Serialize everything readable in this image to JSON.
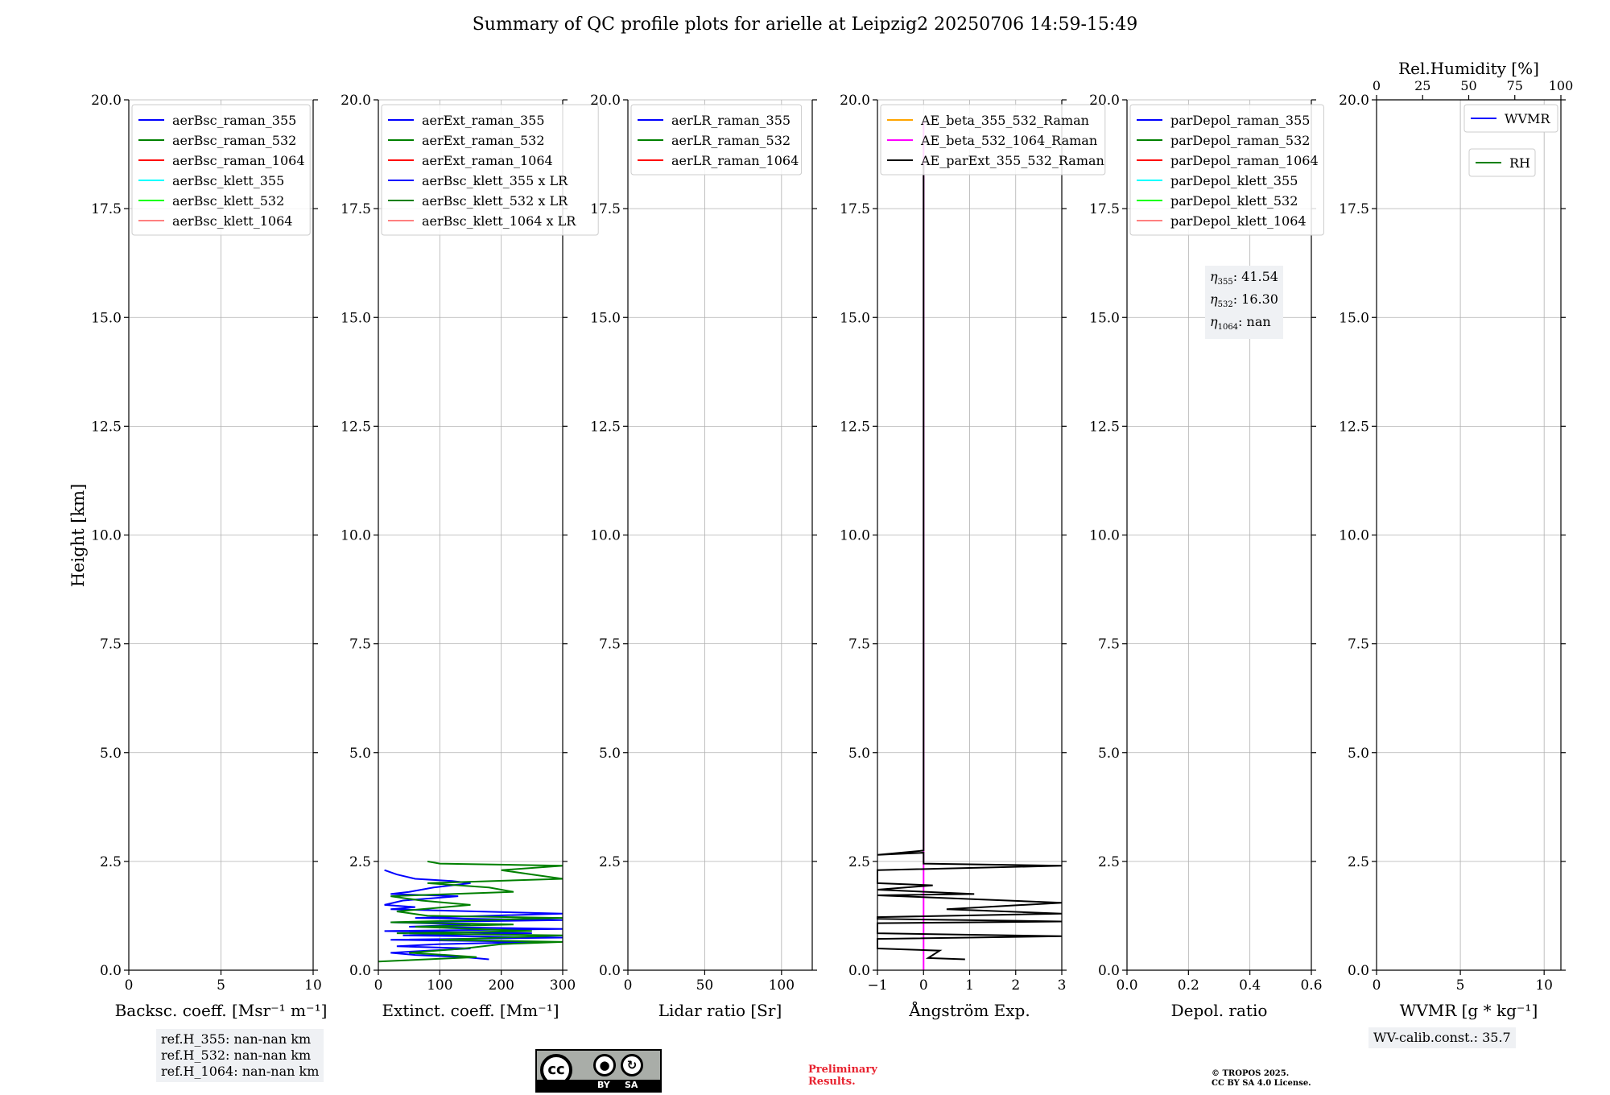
{
  "title": "Summary of QC profile plots for arielle at Leipzig2 20250706 14:59-15:49",
  "colors": {
    "blue": "#0000ff",
    "green": "#008000",
    "red": "#ff0000",
    "cyan": "#00ffff",
    "lime": "#00ff00",
    "pink": "#ff8080",
    "orange": "#ffa500",
    "magenta": "#ff00ff",
    "black": "#000000",
    "grid": "#b0b0b0",
    "info_bg": "#eff1f4",
    "preliminary": "#e8212e"
  },
  "chart_data": [
    {
      "type": "line",
      "ylabel": "Height [km]",
      "xlabel": "Backsc. coeff. [Msr⁻¹ m⁻¹]",
      "xlim": [
        0,
        10
      ],
      "ylim": [
        0,
        20
      ],
      "xticks": [
        0,
        5,
        10
      ],
      "xtick_labels": [
        "0",
        "5",
        "10"
      ],
      "yticks": [
        0,
        2.5,
        5,
        7.5,
        10,
        12.5,
        15,
        17.5,
        20
      ],
      "ytick_labels": [
        "0.0",
        "2.5",
        "5.0",
        "7.5",
        "10.0",
        "12.5",
        "15.0",
        "17.5",
        "20.0"
      ],
      "grid": true,
      "legend_position": "top-left",
      "series": [
        {
          "name": "aerBsc_raman_355",
          "color": "#0000ff",
          "points": []
        },
        {
          "name": "aerBsc_raman_532",
          "color": "#008000",
          "points": []
        },
        {
          "name": "aerBsc_raman_1064",
          "color": "#ff0000",
          "points": []
        },
        {
          "name": "aerBsc_klett_355",
          "color": "#00ffff",
          "points": []
        },
        {
          "name": "aerBsc_klett_532",
          "color": "#00ff00",
          "points": []
        },
        {
          "name": "aerBsc_klett_1064",
          "color": "#ff8080",
          "points": []
        }
      ]
    },
    {
      "type": "line",
      "xlabel": "Extinct. coeff. [Mm⁻¹]",
      "xlim": [
        0,
        300
      ],
      "ylim": [
        0,
        20
      ],
      "xticks": [
        0,
        100,
        200,
        300
      ],
      "xtick_labels": [
        "0",
        "100",
        "200",
        "300"
      ],
      "yticks": [
        0,
        2.5,
        5,
        7.5,
        10,
        12.5,
        15,
        17.5,
        20
      ],
      "ytick_labels": [
        "0.0",
        "2.5",
        "5.0",
        "7.5",
        "10.0",
        "12.5",
        "15.0",
        "17.5",
        "20.0"
      ],
      "grid": true,
      "legend_position": "top-left",
      "series": [
        {
          "name": "aerExt_raman_355",
          "color": "#0000ff",
          "points": []
        },
        {
          "name": "aerExt_raman_532",
          "color": "#008000",
          "points": []
        },
        {
          "name": "aerExt_raman_1064",
          "color": "#ff0000",
          "points": []
        },
        {
          "name": "aerBsc_klett_355 x LR",
          "color": "#0000ff",
          "points": [
            [
              180,
              0.25
            ],
            [
              140,
              0.3
            ],
            [
              60,
              0.35
            ],
            [
              20,
              0.4
            ],
            [
              80,
              0.45
            ],
            [
              150,
              0.5
            ],
            [
              30,
              0.55
            ],
            [
              100,
              0.6
            ],
            [
              260,
              0.65
            ],
            [
              20,
              0.7
            ],
            [
              300,
              0.75
            ],
            [
              40,
              0.8
            ],
            [
              250,
              0.85
            ],
            [
              10,
              0.9
            ],
            [
              300,
              0.95
            ],
            [
              50,
              1.0
            ],
            [
              150,
              1.05
            ],
            [
              20,
              1.1
            ],
            [
              300,
              1.15
            ],
            [
              60,
              1.2
            ],
            [
              300,
              1.3
            ],
            [
              20,
              1.4
            ],
            [
              60,
              1.45
            ],
            [
              10,
              1.5
            ],
            [
              40,
              1.6
            ],
            [
              130,
              1.7
            ],
            [
              20,
              1.75
            ],
            [
              50,
              1.8
            ],
            [
              90,
              1.9
            ],
            [
              150,
              2.0
            ],
            [
              120,
              2.05
            ],
            [
              60,
              2.1
            ],
            [
              30,
              2.2
            ],
            [
              10,
              2.3
            ]
          ]
        },
        {
          "name": "aerBsc_klett_532 x LR",
          "color": "#008000",
          "points": [
            [
              0,
              0.2
            ],
            [
              160,
              0.3
            ],
            [
              110,
              0.35
            ],
            [
              50,
              0.4
            ],
            [
              140,
              0.5
            ],
            [
              200,
              0.6
            ],
            [
              300,
              0.65
            ],
            [
              100,
              0.7
            ],
            [
              300,
              0.8
            ],
            [
              30,
              0.85
            ],
            [
              250,
              0.9
            ],
            [
              60,
              1.0
            ],
            [
              220,
              1.05
            ],
            [
              20,
              1.1
            ],
            [
              300,
              1.2
            ],
            [
              80,
              1.25
            ],
            [
              30,
              1.35
            ],
            [
              150,
              1.5
            ],
            [
              70,
              1.6
            ],
            [
              20,
              1.7
            ],
            [
              220,
              1.8
            ],
            [
              180,
              1.9
            ],
            [
              80,
              2.0
            ],
            [
              300,
              2.1
            ],
            [
              250,
              2.2
            ],
            [
              200,
              2.3
            ],
            [
              300,
              2.4
            ],
            [
              100,
              2.45
            ],
            [
              80,
              2.5
            ]
          ]
        },
        {
          "name": "aerBsc_klett_1064 x LR",
          "color": "#ff8080",
          "points": []
        }
      ]
    },
    {
      "type": "line",
      "xlabel": "Lidar ratio [Sr]",
      "xlim": [
        0,
        120
      ],
      "ylim": [
        0,
        20
      ],
      "xticks": [
        0,
        50,
        100
      ],
      "xtick_labels": [
        "0",
        "50",
        "100"
      ],
      "yticks": [
        0,
        2.5,
        5,
        7.5,
        10,
        12.5,
        15,
        17.5,
        20
      ],
      "ytick_labels": [
        "0.0",
        "2.5",
        "5.0",
        "7.5",
        "10.0",
        "12.5",
        "15.0",
        "17.5",
        "20.0"
      ],
      "grid": true,
      "legend_position": "top-left",
      "series": [
        {
          "name": "aerLR_raman_355",
          "color": "#0000ff",
          "points": []
        },
        {
          "name": "aerLR_raman_532",
          "color": "#008000",
          "points": []
        },
        {
          "name": "aerLR_raman_1064",
          "color": "#ff0000",
          "points": []
        }
      ]
    },
    {
      "type": "line",
      "xlabel": "Ångström Exp.",
      "xlim": [
        -1,
        3
      ],
      "ylim": [
        0,
        20
      ],
      "xticks": [
        -1,
        0,
        1,
        2,
        3
      ],
      "xtick_labels": [
        "−1",
        "0",
        "1",
        "2",
        "3"
      ],
      "yticks": [
        0,
        2.5,
        5,
        7.5,
        10,
        12.5,
        15,
        17.5,
        20
      ],
      "ytick_labels": [
        "0.0",
        "2.5",
        "5.0",
        "7.5",
        "10.0",
        "12.5",
        "15.0",
        "17.5",
        "20.0"
      ],
      "grid": true,
      "legend_position": "top-left",
      "series": [
        {
          "name": "AE_beta_355_532_Raman",
          "color": "#ffa500",
          "points": []
        },
        {
          "name": "AE_beta_532_1064_Raman",
          "color": "#ff00ff",
          "points": [
            [
              0,
              0.0
            ],
            [
              0,
              19.5
            ]
          ]
        },
        {
          "name": "AE_parExt_355_532_Raman",
          "color": "#000000",
          "points": [
            [
              0.9,
              0.25
            ],
            [
              0.1,
              0.28
            ],
            [
              0.35,
              0.45
            ],
            [
              -1,
              0.5
            ],
            [
              -1,
              0.72
            ],
            [
              3,
              0.78
            ],
            [
              -1,
              0.85
            ],
            [
              -1,
              1.08
            ],
            [
              3,
              1.12
            ],
            [
              -1,
              1.18
            ],
            [
              -1,
              1.22
            ],
            [
              3,
              1.3
            ],
            [
              0.5,
              1.4
            ],
            [
              3,
              1.55
            ],
            [
              -1,
              1.72
            ],
            [
              1.1,
              1.75
            ],
            [
              -1,
              1.85
            ],
            [
              0.2,
              1.95
            ],
            [
              -1,
              2.0
            ],
            [
              -1,
              2.3
            ],
            [
              3,
              2.4
            ],
            [
              0,
              2.45
            ],
            [
              0,
              2.7
            ],
            [
              -1,
              2.65
            ],
            [
              0,
              2.75
            ],
            [
              0,
              18.5
            ]
          ]
        }
      ]
    },
    {
      "type": "line",
      "xlabel": "Depol. ratio",
      "xlim": [
        0,
        0.6
      ],
      "ylim": [
        0,
        20
      ],
      "xticks": [
        0,
        0.2,
        0.4,
        0.6
      ],
      "xtick_labels": [
        "0.0",
        "0.2",
        "0.4",
        "0.6"
      ],
      "yticks": [
        0,
        2.5,
        5,
        7.5,
        10,
        12.5,
        15,
        17.5,
        20
      ],
      "ytick_labels": [
        "0.0",
        "2.5",
        "5.0",
        "7.5",
        "10.0",
        "12.5",
        "15.0",
        "17.5",
        "20.0"
      ],
      "grid": true,
      "legend_position": "top-left",
      "series": [
        {
          "name": "parDepol_raman_355",
          "color": "#0000ff",
          "points": []
        },
        {
          "name": "parDepol_raman_532",
          "color": "#008000",
          "points": []
        },
        {
          "name": "parDepol_raman_1064",
          "color": "#ff0000",
          "points": []
        },
        {
          "name": "parDepol_klett_355",
          "color": "#00ffff",
          "points": []
        },
        {
          "name": "parDepol_klett_532",
          "color": "#00ff00",
          "points": []
        },
        {
          "name": "parDepol_klett_1064",
          "color": "#ff8080",
          "points": []
        }
      ]
    },
    {
      "type": "line",
      "xlabel": "WVMR [g * kg⁻¹]",
      "xlim": [
        0,
        11
      ],
      "ylim": [
        0,
        20
      ],
      "xticks": [
        0,
        5,
        10
      ],
      "xtick_labels": [
        "0",
        "5",
        "10"
      ],
      "yticks": [
        0,
        2.5,
        5,
        7.5,
        10,
        12.5,
        15,
        17.5,
        20
      ],
      "ytick_labels": [
        "0.0",
        "2.5",
        "5.0",
        "7.5",
        "10.0",
        "12.5",
        "15.0",
        "17.5",
        "20.0"
      ],
      "grid": true,
      "legend_position": "top-right",
      "top_xlabel": "Rel.Humidity [%]",
      "top_xlim": [
        0,
        100
      ],
      "top_xticks": [
        0,
        25,
        50,
        75,
        100
      ],
      "top_xtick_labels": [
        "0",
        "25",
        "50",
        "75",
        "100"
      ],
      "series": [
        {
          "name": "WVMR",
          "color": "#0000ff",
          "points": []
        },
        {
          "name": "RH",
          "color": "#008000",
          "points": []
        }
      ]
    }
  ],
  "annotations": {
    "refh": [
      "ref.H_355: nan-nan km",
      "ref.H_532: nan-nan km",
      "ref.H_1064: nan-nan km"
    ],
    "eta_symbol": "η",
    "eta": [
      {
        "sub": "355",
        "value": ": 41.54"
      },
      {
        "sub": "532",
        "value": ": 16.30"
      },
      {
        "sub": "1064",
        "value": ": nan"
      }
    ],
    "wv_calib": "WV-calib.const.: 35.7",
    "preliminary": [
      "Preliminary",
      "Results."
    ],
    "copyright": [
      "© TROPOS 2025.",
      "CC BY SA 4.0 License."
    ],
    "cc_logo": {
      "cc": "cc",
      "by": "BY",
      "sa": "SA"
    }
  }
}
